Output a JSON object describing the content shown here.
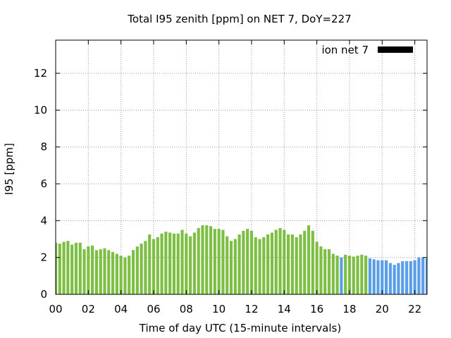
{
  "chart_data": {
    "type": "bar",
    "title": "Total I95 zenith [ppm] on NET 7, DoY=227",
    "xlabel": "Time of day UTC (15-minute intervals)",
    "ylabel": "I95 [ppm]",
    "x_ticks": [
      {
        "value": 0,
        "label": "00"
      },
      {
        "value": 2,
        "label": "02"
      },
      {
        "value": 4,
        "label": "04"
      },
      {
        "value": 6,
        "label": "06"
      },
      {
        "value": 8,
        "label": "08"
      },
      {
        "value": 10,
        "label": "10"
      },
      {
        "value": 12,
        "label": "12"
      },
      {
        "value": 14,
        "label": "14"
      },
      {
        "value": 16,
        "label": "16"
      },
      {
        "value": 18,
        "label": "18"
      },
      {
        "value": 20,
        "label": "20"
      },
      {
        "value": 22,
        "label": "22"
      }
    ],
    "y_ticks": [
      0,
      2,
      4,
      6,
      8,
      10,
      12
    ],
    "xlim": [
      0,
      22.75
    ],
    "ylim": [
      0,
      13.8
    ],
    "grid": true,
    "legend": {
      "position": "top-right",
      "label": "ion net 7",
      "color": "#000000"
    },
    "bar_width_hours": 0.18,
    "colors": {
      "primary": "#7dbf44",
      "secondary": "#5b9ee8"
    },
    "x_start_hours": 0,
    "x_step_hours": 0.25,
    "values": [
      2.8,
      2.75,
      2.85,
      2.9,
      2.7,
      2.8,
      2.8,
      2.45,
      2.6,
      2.65,
      2.4,
      2.45,
      2.5,
      2.4,
      2.3,
      2.2,
      2.1,
      2.0,
      2.1,
      2.4,
      2.6,
      2.75,
      2.9,
      3.25,
      3.0,
      3.1,
      3.3,
      3.4,
      3.35,
      3.3,
      3.3,
      3.5,
      3.3,
      3.15,
      3.35,
      3.6,
      3.75,
      3.75,
      3.7,
      3.55,
      3.55,
      3.5,
      3.15,
      2.9,
      3.0,
      3.25,
      3.45,
      3.55,
      3.45,
      3.1,
      3.0,
      3.1,
      3.25,
      3.35,
      3.5,
      3.6,
      3.5,
      3.25,
      3.25,
      3.1,
      3.25,
      3.45,
      3.75,
      3.45,
      2.85,
      2.6,
      2.45,
      2.45,
      2.2,
      2.1,
      2.0,
      2.15,
      2.1,
      2.05,
      2.1,
      2.15,
      2.1,
      1.95,
      1.9,
      1.85,
      1.85,
      1.85,
      1.7,
      1.6,
      1.7,
      1.8,
      1.8,
      1.8,
      1.85,
      2.0,
      2.0,
      1.95
    ],
    "series_color_index": [
      0,
      0,
      0,
      0,
      0,
      0,
      0,
      0,
      0,
      0,
      0,
      0,
      0,
      0,
      0,
      0,
      0,
      0,
      0,
      0,
      0,
      0,
      0,
      0,
      0,
      0,
      0,
      0,
      0,
      0,
      0,
      0,
      0,
      0,
      0,
      0,
      0,
      0,
      0,
      0,
      0,
      0,
      0,
      0,
      0,
      0,
      0,
      0,
      0,
      0,
      0,
      0,
      0,
      0,
      0,
      0,
      0,
      0,
      0,
      0,
      0,
      0,
      0,
      0,
      0,
      0,
      0,
      0,
      0,
      0,
      1,
      0,
      0,
      0,
      0,
      0,
      0,
      1,
      1,
      1,
      1,
      1,
      1,
      1,
      1,
      1,
      1,
      1,
      1,
      1,
      1,
      1
    ]
  }
}
